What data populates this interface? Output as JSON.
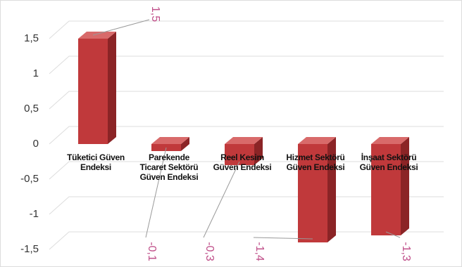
{
  "chart_data": {
    "type": "bar3d",
    "categories": [
      "Tüketici Güven Endeksi",
      "Parekende Ticaret Sektörü Güven Endeksi",
      "Reel Kesim Güven Endeksi",
      "Hizmet Sektörü Güven Endeksi",
      "İnşaat Sektörü Güven Endeksi"
    ],
    "values": [
      1.5,
      -0.1,
      -0.3,
      -1.4,
      -1.3
    ],
    "value_labels": [
      "1,5",
      "-0,1",
      "-0,3",
      "-1,4",
      "-1,3"
    ],
    "color": "#c0393b",
    "ylim": [
      -1.5,
      1.5
    ],
    "yticks": [
      {
        "value": -1.5,
        "label": "-1,5"
      },
      -1,
      {
        "value": -0.5,
        "label": "-0,5"
      },
      0,
      {
        "value": 0.5,
        "label": "0,5"
      },
      1,
      {
        "value": 1.5,
        "label": "1,5"
      }
    ],
    "grid": true
  }
}
